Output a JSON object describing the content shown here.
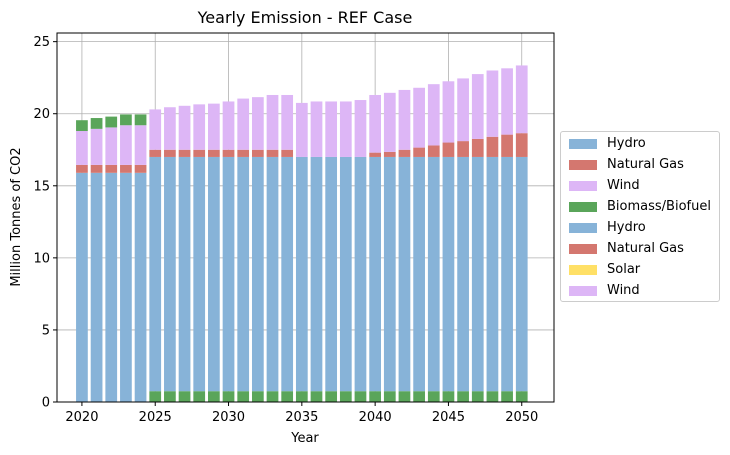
{
  "chart_data": {
    "type": "bar",
    "stacked": true,
    "title": "Yearly Emission - REF Case",
    "xlabel": "Year",
    "ylabel": "Million Tonnes of CO2",
    "xlim": [
      2018.3,
      2052.2
    ],
    "ylim": [
      0,
      25.6
    ],
    "xticks": [
      2020,
      2025,
      2030,
      2035,
      2040,
      2045,
      2050
    ],
    "yticks": [
      0,
      5,
      10,
      15,
      20,
      25
    ],
    "grid": true,
    "legend_position": "center-right outside",
    "years": [
      2020,
      2021,
      2022,
      2023,
      2024,
      2025,
      2026,
      2027,
      2028,
      2029,
      2030,
      2031,
      2032,
      2033,
      2034,
      2035,
      2036,
      2037,
      2038,
      2039,
      2040,
      2041,
      2042,
      2043,
      2044,
      2045,
      2046,
      2047,
      2048,
      2049,
      2050
    ],
    "series": [
      {
        "name": "Hydro",
        "color": "#87b3d8",
        "values": [
          15.9,
          15.9,
          15.9,
          15.9,
          15.9,
          0,
          0,
          0,
          0,
          0,
          0,
          0,
          0,
          0,
          0,
          0,
          0,
          0,
          0,
          0,
          0,
          0,
          0,
          0,
          0,
          0,
          0,
          0,
          0,
          0,
          0
        ]
      },
      {
        "name": "Natural Gas",
        "color": "#d4776f",
        "values": [
          0.55,
          0.55,
          0.55,
          0.55,
          0.55,
          0,
          0,
          0,
          0,
          0,
          0,
          0,
          0,
          0,
          0,
          0,
          0,
          0,
          0,
          0,
          0,
          0,
          0,
          0,
          0,
          0,
          0,
          0,
          0,
          0,
          0
        ]
      },
      {
        "name": "Wind",
        "color": "#ddb6f6",
        "values": [
          2.35,
          2.5,
          2.6,
          2.75,
          2.75,
          0,
          0,
          0,
          0,
          0,
          0,
          0,
          0,
          0,
          0,
          0,
          0,
          0,
          0,
          0,
          0,
          0,
          0,
          0,
          0,
          0,
          0,
          0,
          0,
          0,
          0
        ]
      },
      {
        "name": "Biomass/Biofuel",
        "color": "#5aa55a",
        "values": [
          0.75,
          0.75,
          0.75,
          0.75,
          0.75,
          0.75,
          0.75,
          0.75,
          0.75,
          0.75,
          0.75,
          0.75,
          0.75,
          0.75,
          0.75,
          0.75,
          0.75,
          0.75,
          0.75,
          0.75,
          0.75,
          0.75,
          0.75,
          0.75,
          0.75,
          0.75,
          0.75,
          0.75,
          0.75,
          0.75,
          0.75
        ]
      },
      {
        "name": "Hydro",
        "color": "#87b3d8",
        "values": [
          0,
          0,
          0,
          0,
          0,
          16.25,
          16.25,
          16.25,
          16.25,
          16.25,
          16.25,
          16.25,
          16.25,
          16.25,
          16.25,
          16.25,
          16.25,
          16.25,
          16.25,
          16.25,
          16.25,
          16.25,
          16.25,
          16.25,
          16.25,
          16.25,
          16.25,
          16.25,
          16.25,
          16.25,
          16.25
        ]
      },
      {
        "name": "Natural Gas",
        "color": "#d4776f",
        "values": [
          0,
          0,
          0,
          0,
          0,
          0.5,
          0.5,
          0.5,
          0.5,
          0.5,
          0.5,
          0.5,
          0.5,
          0.5,
          0.5,
          0,
          0,
          0,
          0,
          0,
          0.3,
          0.35,
          0.5,
          0.65,
          0.8,
          1.0,
          1.1,
          1.25,
          1.4,
          1.55,
          1.65
        ]
      },
      {
        "name": "Solar",
        "color": "#ffe066",
        "values": [
          0,
          0,
          0,
          0,
          0,
          0,
          0,
          0,
          0,
          0,
          0,
          0,
          0,
          0,
          0,
          0,
          0,
          0,
          0,
          0,
          0,
          0,
          0,
          0,
          0,
          0,
          0,
          0,
          0,
          0,
          0
        ]
      },
      {
        "name": "Wind",
        "color": "#ddb6f6",
        "values": [
          0,
          0,
          0,
          0,
          0,
          2.8,
          2.95,
          3.05,
          3.15,
          3.2,
          3.35,
          3.55,
          3.65,
          3.8,
          3.8,
          3.75,
          3.85,
          3.85,
          3.85,
          3.95,
          4.0,
          4.1,
          4.15,
          4.15,
          4.25,
          4.25,
          4.35,
          4.5,
          4.6,
          4.6,
          4.7
        ]
      }
    ]
  }
}
